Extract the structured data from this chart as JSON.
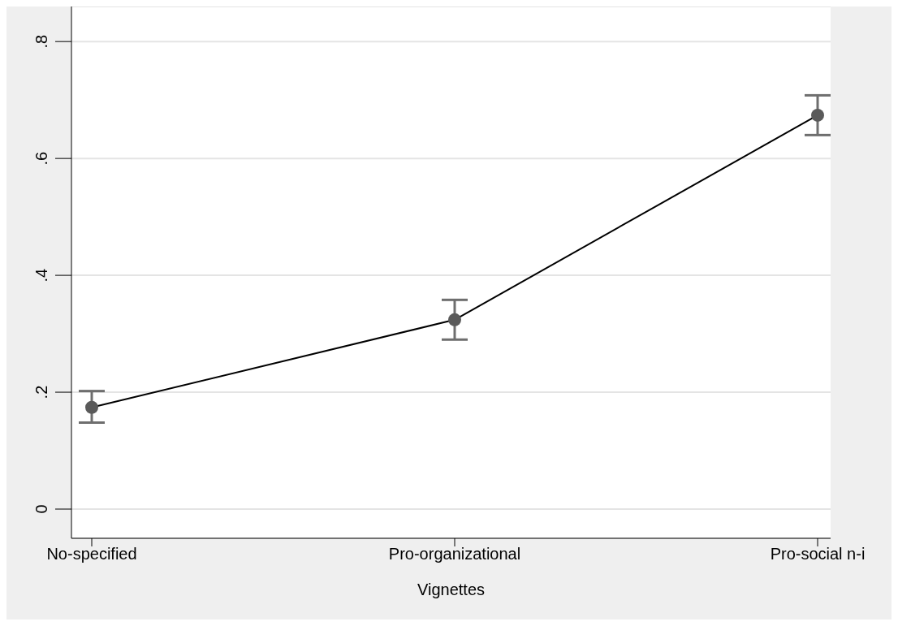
{
  "chart_data": {
    "type": "line",
    "xlabel": "Vignettes",
    "categories": [
      "No-specified",
      "Pro-organizational",
      "Pro-social n-i"
    ],
    "series": [
      {
        "color": "#000000",
        "values": [
          0.174,
          0.324,
          0.674
        ],
        "errors": [
          [
            0.148,
            0.202
          ],
          [
            0.29,
            0.358
          ],
          [
            0.64,
            0.708
          ]
        ]
      }
    ],
    "ylim": [
      -0.05,
      0.86
    ],
    "yticks": [
      0,
      {
        "value": 0.2,
        "label": ".2"
      },
      {
        "value": 0.4,
        "label": ".4"
      },
      {
        "value": 0.6,
        "label": ".6"
      },
      {
        "value": 0.8,
        "label": ".8"
      }
    ],
    "grid": "y",
    "marker": "circle",
    "line_style": "solid",
    "legend": false
  }
}
